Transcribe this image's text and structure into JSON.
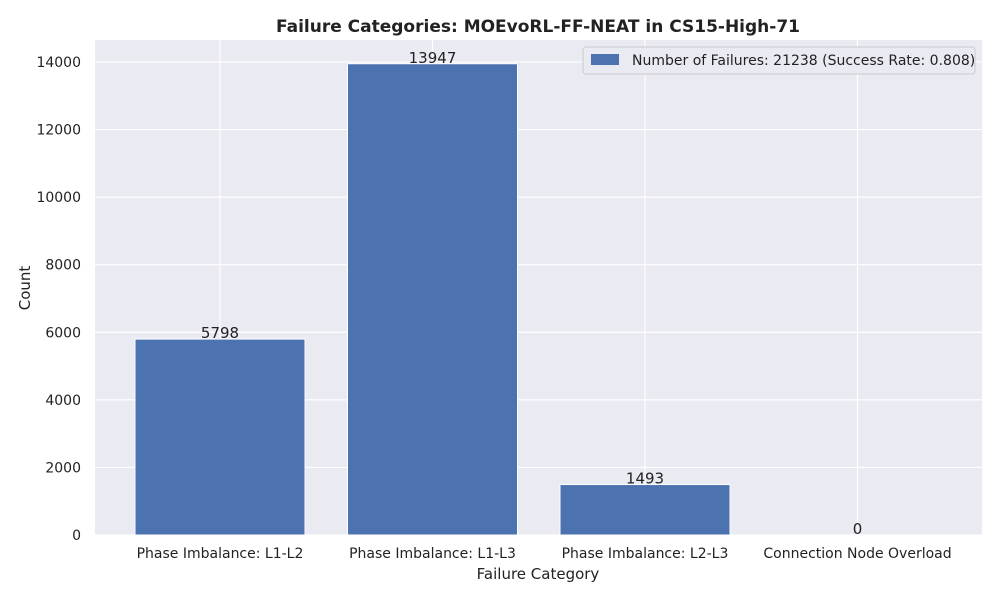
{
  "chart_data": {
    "type": "bar",
    "title": "Failure Categories: MOEvoRL-FF-NEAT in CS15-High-71",
    "xlabel": "Failure Category",
    "ylabel": "Count",
    "categories": [
      "Phase Imbalance: L1-L2",
      "Phase Imbalance: L1-L3",
      "Phase Imbalance: L2-L3",
      "Connection Node Overload"
    ],
    "series": [
      {
        "name": "Number of Failures: 21238 (Success Rate: 0.808)",
        "values": [
          5798,
          13947,
          1493,
          0
        ]
      }
    ],
    "data_labels": [
      "5798",
      "13947",
      "1493",
      "0"
    ],
    "yticks": [
      0,
      2000,
      4000,
      6000,
      8000,
      10000,
      12000,
      14000
    ],
    "ylim": [
      0,
      14650
    ],
    "grid": true,
    "legend_position": "top-right",
    "colors": {
      "bar": "#4c72b0",
      "plot_background": "#eaeaf2",
      "grid": "#ffffff"
    }
  }
}
